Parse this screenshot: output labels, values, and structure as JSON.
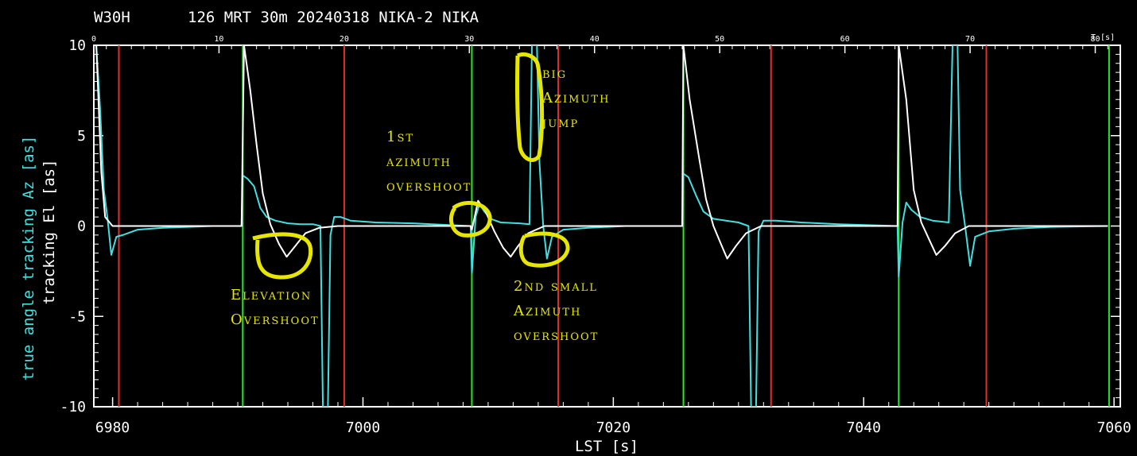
{
  "header": {
    "station": "W30H",
    "info": "126 MRT 30m  20240318 NIKA-2 NIKA"
  },
  "chart_data": {
    "type": "line",
    "xlabel": "LST [s]",
    "ylabel_az": "true angle tracking Az [as]",
    "ylabel_el": "tracking El [as]",
    "top_axis_label": "T [s]",
    "xlim": [
      6978.5,
      7060.5
    ],
    "ylim": [
      -10,
      10
    ],
    "x_ticks": [
      6980,
      7000,
      7020,
      7040,
      7060
    ],
    "y_ticks": [
      10,
      5,
      0,
      -5,
      -10
    ],
    "top_ticks": [
      0,
      10,
      20,
      30,
      40,
      50,
      60,
      70,
      80
    ],
    "top_axis_offset": 6978.5,
    "grid": false,
    "colors": {
      "az": "#40e0e0",
      "el": "#ffffff",
      "start": "#2ee62e",
      "end": "#e62e2e",
      "annotation": "#e6e600"
    },
    "subscan_start_lines": [
      6990.4,
      7008.7,
      7025.6,
      7042.8,
      7059.6
    ],
    "subscan_end_lines": [
      6980.5,
      6998.5,
      7015.6,
      7032.6,
      7049.8
    ],
    "series": [
      {
        "name": "Az",
        "points": [
          [
            6978.7,
            10
          ],
          [
            6979.0,
            6.5
          ],
          [
            6979.3,
            2.0
          ],
          [
            6979.6,
            0.4
          ],
          [
            6979.9,
            -1.6
          ],
          [
            6980.3,
            -0.6
          ],
          [
            6980.8,
            -0.5
          ],
          [
            6982.0,
            -0.2
          ],
          [
            6984.0,
            -0.1
          ],
          [
            6988.0,
            0.0
          ],
          [
            6990.3,
            0.0
          ],
          [
            6990.4,
            2.8
          ],
          [
            6990.8,
            2.6
          ],
          [
            6991.3,
            2.2
          ],
          [
            6991.8,
            1.0
          ],
          [
            6992.3,
            0.5
          ],
          [
            6993.0,
            0.3
          ],
          [
            6994.0,
            0.15
          ],
          [
            6995.0,
            0.1
          ],
          [
            6996.0,
            0.1
          ],
          [
            6996.6,
            0.0
          ],
          [
            6996.8,
            -10
          ],
          [
            6997.2,
            -10
          ],
          [
            6997.4,
            -0.5
          ],
          [
            6997.7,
            0.5
          ],
          [
            6998.2,
            0.5
          ],
          [
            6999.0,
            0.3
          ],
          [
            7001.0,
            0.2
          ],
          [
            7004.0,
            0.15
          ],
          [
            7007.0,
            0.05
          ],
          [
            7008.6,
            0.0
          ],
          [
            7008.7,
            -2.6
          ],
          [
            7009.0,
            0.5
          ],
          [
            7009.3,
            1.2
          ],
          [
            7009.7,
            0.8
          ],
          [
            7010.2,
            0.4
          ],
          [
            7011.0,
            0.2
          ],
          [
            7012.5,
            0.15
          ],
          [
            7013.3,
            0.1
          ],
          [
            7013.5,
            10
          ],
          [
            7013.9,
            10
          ],
          [
            7014.1,
            3.5
          ],
          [
            7014.4,
            0.0
          ],
          [
            7014.7,
            -1.8
          ],
          [
            7015.1,
            -0.6
          ],
          [
            7016.0,
            -0.2
          ],
          [
            7018.0,
            -0.1
          ],
          [
            7021.0,
            0.0
          ],
          [
            7025.5,
            0.0
          ],
          [
            7025.6,
            2.9
          ],
          [
            7026.0,
            2.7
          ],
          [
            7026.6,
            1.7
          ],
          [
            7027.2,
            0.8
          ],
          [
            7028.0,
            0.4
          ],
          [
            7029.0,
            0.3
          ],
          [
            7030.0,
            0.2
          ],
          [
            7030.8,
            0.0
          ],
          [
            7031.0,
            -10
          ],
          [
            7031.4,
            -10
          ],
          [
            7031.6,
            -0.3
          ],
          [
            7032.0,
            0.3
          ],
          [
            7033.0,
            0.3
          ],
          [
            7035.0,
            0.2
          ],
          [
            7038.0,
            0.1
          ],
          [
            7042.7,
            0.0
          ],
          [
            7042.8,
            -2.8
          ],
          [
            7043.1,
            0.2
          ],
          [
            7043.4,
            1.3
          ],
          [
            7043.8,
            0.9
          ],
          [
            7044.5,
            0.5
          ],
          [
            7045.5,
            0.3
          ],
          [
            7046.8,
            0.2
          ],
          [
            7047.1,
            10
          ],
          [
            7047.5,
            10
          ],
          [
            7047.7,
            2.0
          ],
          [
            7048.1,
            0.0
          ],
          [
            7048.5,
            -2.2
          ],
          [
            7048.9,
            -0.6
          ],
          [
            7050.0,
            -0.3
          ],
          [
            7052.0,
            -0.15
          ],
          [
            7055.0,
            -0.05
          ],
          [
            7059.5,
            0.0
          ]
        ]
      },
      {
        "name": "El",
        "points": [
          [
            6978.7,
            10
          ],
          [
            6979.1,
            3.0
          ],
          [
            6979.4,
            0.5
          ],
          [
            6980.0,
            0.0
          ],
          [
            6985.0,
            0.0
          ],
          [
            6990.3,
            0.0
          ],
          [
            6990.5,
            10
          ],
          [
            6991.0,
            7.5
          ],
          [
            6991.5,
            4.5
          ],
          [
            6992.0,
            1.8
          ],
          [
            6992.6,
            0.1
          ],
          [
            6993.3,
            -1.0
          ],
          [
            6993.9,
            -1.7
          ],
          [
            6994.6,
            -1.1
          ],
          [
            6995.4,
            -0.4
          ],
          [
            6996.5,
            -0.1
          ],
          [
            6998.0,
            0.0
          ],
          [
            7008.6,
            0.0
          ],
          [
            7008.7,
            -0.2
          ],
          [
            7009.2,
            1.4
          ],
          [
            7009.8,
            0.8
          ],
          [
            7010.5,
            -0.3
          ],
          [
            7011.2,
            -1.2
          ],
          [
            7011.8,
            -1.7
          ],
          [
            7012.4,
            -1.1
          ],
          [
            7013.2,
            -0.4
          ],
          [
            7014.5,
            0.0
          ],
          [
            7025.5,
            0.0
          ],
          [
            7025.6,
            10
          ],
          [
            7026.1,
            7.0
          ],
          [
            7026.8,
            4.0
          ],
          [
            7027.4,
            1.5
          ],
          [
            7028.0,
            0.0
          ],
          [
            7028.6,
            -1.0
          ],
          [
            7029.1,
            -1.8
          ],
          [
            7029.8,
            -1.1
          ],
          [
            7030.6,
            -0.4
          ],
          [
            7031.8,
            0.0
          ],
          [
            7042.7,
            0.0
          ],
          [
            7042.8,
            10
          ],
          [
            7043.4,
            7.0
          ],
          [
            7044.0,
            2.0
          ],
          [
            7044.6,
            0.2
          ],
          [
            7045.2,
            -0.7
          ],
          [
            7045.8,
            -1.6
          ],
          [
            7046.5,
            -1.1
          ],
          [
            7047.3,
            -0.4
          ],
          [
            7048.4,
            0.0
          ],
          [
            7059.5,
            0.0
          ]
        ]
      }
    ],
    "annotations": [
      {
        "lines": [
          "big",
          "Azimuth",
          "jump"
        ]
      },
      {
        "lines": [
          "1st",
          "azimuth",
          "overshoot"
        ]
      },
      {
        "lines": [
          "Elevation",
          "Overshoot"
        ]
      },
      {
        "lines": [
          "2nd small",
          "Azimuth",
          "overshoot"
        ]
      }
    ]
  }
}
